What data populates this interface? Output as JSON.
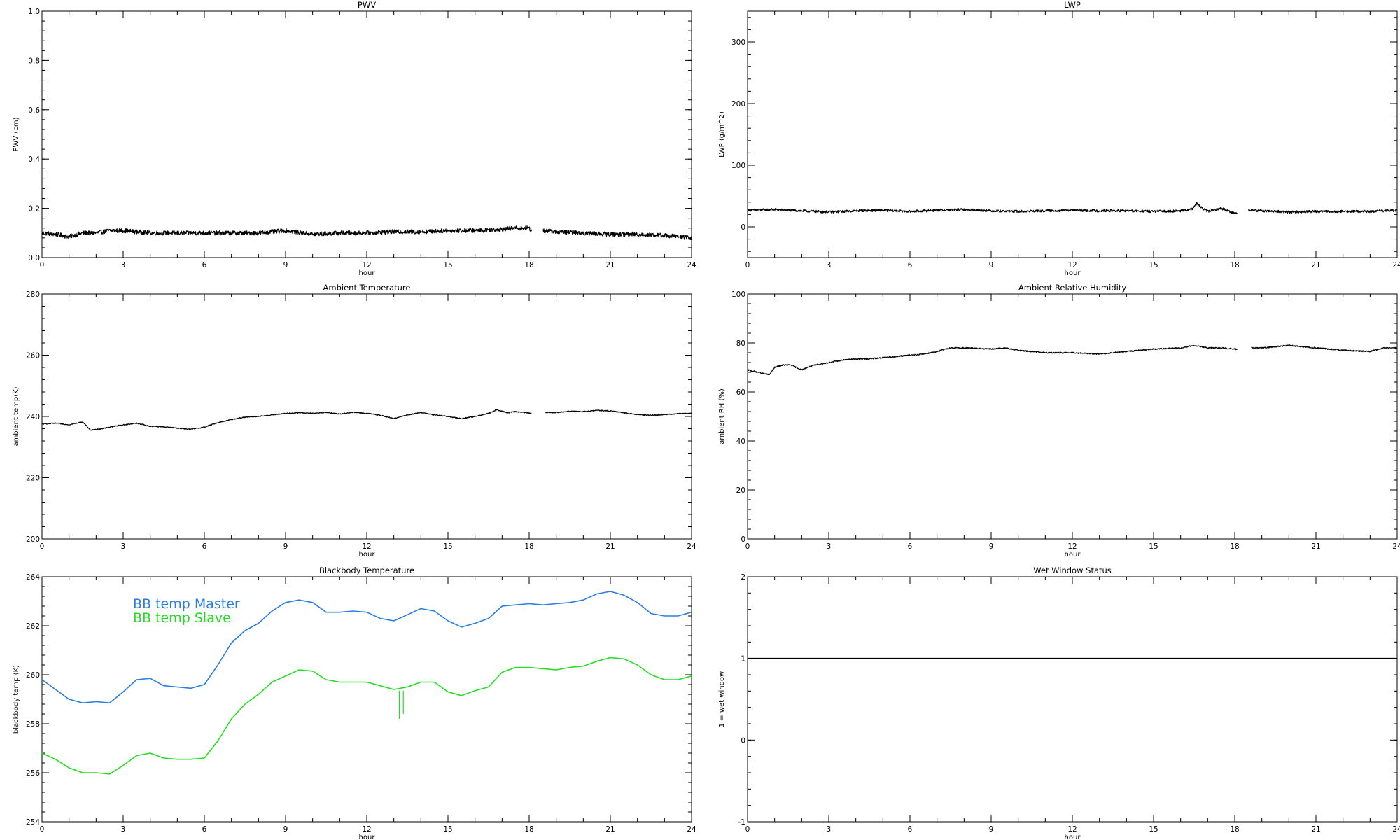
{
  "chart_data": [
    {
      "id": "pwv",
      "type": "line",
      "title": "PWV",
      "xlabel": "hour",
      "ylabel": "PWV (cm)",
      "xlim": [
        0,
        24
      ],
      "ylim": [
        0.0,
        1.0
      ],
      "xticks": [
        "0",
        "3",
        "6",
        "9",
        "12",
        "15",
        "18",
        "21",
        "24"
      ],
      "yticks": [
        "0.0",
        "0.2",
        "0.4",
        "0.6",
        "0.8",
        "1.0"
      ],
      "series": [
        {
          "color": "#000000",
          "noise": 0.009,
          "gaps": [
            [
              18.1,
              18.5
            ]
          ],
          "x": [
            0,
            0.5,
            1,
            1.5,
            2,
            2.5,
            3,
            3.5,
            4,
            5,
            6,
            7,
            8,
            9,
            10,
            11,
            12,
            13,
            14,
            15,
            16,
            17,
            17.5,
            18,
            18.1,
            18.5,
            19,
            20,
            21,
            22,
            23,
            24
          ],
          "y": [
            0.1,
            0.095,
            0.085,
            0.1,
            0.1,
            0.11,
            0.11,
            0.105,
            0.1,
            0.1,
            0.1,
            0.1,
            0.1,
            0.11,
            0.095,
            0.1,
            0.1,
            0.105,
            0.105,
            0.11,
            0.11,
            0.115,
            0.12,
            0.12,
            0.11,
            0.11,
            0.105,
            0.1,
            0.095,
            0.095,
            0.09,
            0.08
          ]
        }
      ]
    },
    {
      "id": "lwp",
      "type": "line",
      "title": "LWP",
      "xlabel": "hour",
      "ylabel": "LWP (g/m^2)",
      "xlim": [
        0,
        24
      ],
      "ylim": [
        -50,
        350
      ],
      "xticks": [
        "0",
        "3",
        "6",
        "9",
        "12",
        "15",
        "18",
        "21",
        "24"
      ],
      "yticks": [
        "0",
        "100",
        "200",
        "300"
      ],
      "series": [
        {
          "color": "#000000",
          "noise": 2.0,
          "gaps": [
            [
              18.1,
              18.5
            ]
          ],
          "x": [
            0,
            1,
            2,
            3,
            4,
            5,
            6,
            7,
            8,
            9,
            10,
            11,
            12,
            13,
            14,
            15,
            16,
            16.4,
            16.6,
            16.8,
            17,
            17.5,
            18,
            18.1,
            18.5,
            19,
            20,
            21,
            22,
            23,
            24
          ],
          "y": [
            27,
            28,
            26,
            24,
            26,
            27,
            25,
            27,
            28,
            26,
            25,
            26,
            27,
            26,
            26,
            25,
            26,
            28,
            38,
            30,
            25,
            30,
            22,
            22,
            27,
            26,
            24,
            25,
            25,
            25,
            27
          ]
        }
      ]
    },
    {
      "id": "ambient-temp",
      "type": "line",
      "title": "Ambient Temperature",
      "xlabel": "hour",
      "ylabel": "ambient temp(K)",
      "xlim": [
        0,
        24
      ],
      "ylim": [
        200,
        280
      ],
      "xticks": [
        "0",
        "3",
        "6",
        "9",
        "12",
        "15",
        "18",
        "21",
        "24"
      ],
      "yticks": [
        "200",
        "220",
        "240",
        "260",
        "280"
      ],
      "series": [
        {
          "color": "#000000",
          "noise": 0.15,
          "gaps": [
            [
              18.1,
              18.6
            ]
          ],
          "x": [
            0,
            0.5,
            1,
            1.5,
            1.8,
            2.2,
            2.8,
            3.5,
            4,
            4.5,
            5,
            5.5,
            6,
            6.5,
            7,
            7.5,
            8,
            8.5,
            9,
            9.5,
            10,
            10.5,
            11,
            11.5,
            12,
            12.5,
            13,
            13.5,
            14,
            14.5,
            15,
            15.5,
            16,
            16.5,
            16.8,
            17.2,
            17.5,
            18,
            18.1,
            18.6,
            19,
            19.5,
            20,
            20.5,
            21,
            21.5,
            22,
            22.5,
            23,
            23.5,
            24
          ],
          "y": [
            237.5,
            237.8,
            237.3,
            238.2,
            235.5,
            236.0,
            237.0,
            237.8,
            236.8,
            236.6,
            236.2,
            235.8,
            236.5,
            238.0,
            239.0,
            239.8,
            240.0,
            240.5,
            241.0,
            241.2,
            241.0,
            241.3,
            240.8,
            241.4,
            241.0,
            240.4,
            239.3,
            240.5,
            241.3,
            240.5,
            240.0,
            239.3,
            240.0,
            241.0,
            242.2,
            241.2,
            241.6,
            241.1,
            241.0,
            241.3,
            241.3,
            241.7,
            241.6,
            242.0,
            241.8,
            241.2,
            240.6,
            240.4,
            240.6,
            240.9,
            241.0
          ]
        }
      ]
    },
    {
      "id": "ambient-rh",
      "type": "line",
      "title": "Ambient Relative Humidity",
      "xlabel": "hour",
      "ylabel": "ambient RH (%)",
      "xlim": [
        0,
        24
      ],
      "ylim": [
        0,
        100
      ],
      "xticks": [
        "0",
        "3",
        "6",
        "9",
        "12",
        "15",
        "18",
        "21",
        "24"
      ],
      "yticks": [
        "0",
        "20",
        "40",
        "60",
        "80",
        "100"
      ],
      "series": [
        {
          "color": "#000000",
          "noise": 0.25,
          "gaps": [
            [
              18.1,
              18.6
            ]
          ],
          "x": [
            0,
            0.4,
            0.8,
            1.0,
            1.3,
            1.6,
            2.0,
            2.2,
            2.5,
            3,
            3.5,
            4,
            4.5,
            5,
            5.5,
            6,
            6.5,
            7,
            7.5,
            8,
            9,
            9.5,
            10,
            11,
            12,
            13,
            14,
            15,
            16,
            16.5,
            17,
            17.5,
            18,
            18.1,
            18.6,
            19,
            19.5,
            20,
            20.5,
            21,
            22,
            23,
            23.5,
            24
          ],
          "y": [
            69,
            68,
            67,
            70,
            71,
            71,
            69,
            70,
            71,
            72,
            73,
            73.5,
            73.5,
            74,
            74.5,
            75,
            75.5,
            76.5,
            78,
            78,
            77.5,
            78,
            77,
            76,
            76,
            75.5,
            76.5,
            77.5,
            78,
            79,
            78,
            78,
            77.5,
            77.5,
            78,
            78,
            78.5,
            79,
            78.5,
            78,
            77,
            76.5,
            78,
            78
          ]
        }
      ]
    },
    {
      "id": "bb-temp",
      "type": "line",
      "title": "Blackbody Temperature",
      "xlabel": "hour",
      "ylabel": "blackbody temp (K)",
      "xlim": [
        0,
        24
      ],
      "ylim": [
        254,
        264
      ],
      "xticks": [
        "0",
        "3",
        "6",
        "9",
        "12",
        "15",
        "18",
        "21",
        "24"
      ],
      "yticks": [
        "254",
        "256",
        "258",
        "260",
        "262",
        "264"
      ],
      "legend": [
        "BB temp Master",
        "BB temp Slave"
      ],
      "legend_position": "top-left",
      "series": [
        {
          "name": "BB temp Master",
          "color": "#2b7de0",
          "noise": 0,
          "x": [
            0,
            0.5,
            1,
            1.5,
            2,
            2.5,
            3,
            3.5,
            4,
            4.5,
            5,
            5.5,
            6,
            6.5,
            7,
            7.5,
            8,
            8.5,
            9,
            9.5,
            10,
            10.5,
            11,
            11.5,
            12,
            12.5,
            13,
            13.5,
            14,
            14.5,
            15,
            15.5,
            16,
            16.5,
            17,
            17.5,
            18,
            18.5,
            19,
            19.5,
            20,
            20.5,
            21,
            21.5,
            22,
            22.5,
            23,
            23.5,
            24
          ],
          "y": [
            259.8,
            259.4,
            259.0,
            258.85,
            258.9,
            258.85,
            259.3,
            259.8,
            259.85,
            259.55,
            259.5,
            259.45,
            259.6,
            260.4,
            261.3,
            261.8,
            262.1,
            262.6,
            262.95,
            263.05,
            262.95,
            262.55,
            262.55,
            262.6,
            262.55,
            262.3,
            262.2,
            262.45,
            262.7,
            262.6,
            262.2,
            261.95,
            262.1,
            262.3,
            262.8,
            262.85,
            262.9,
            262.85,
            262.9,
            262.95,
            263.05,
            263.3,
            263.4,
            263.25,
            262.95,
            262.5,
            262.4,
            262.4,
            262.55
          ]
        },
        {
          "name": "BB temp Slave",
          "color": "#22dd22",
          "noise": 0,
          "x": [
            0,
            0.5,
            1,
            1.5,
            2,
            2.5,
            3,
            3.5,
            4,
            4.5,
            5,
            5.5,
            6,
            6.5,
            7,
            7.5,
            8,
            8.5,
            9,
            9.5,
            10,
            10.5,
            11,
            11.5,
            12,
            12.5,
            13,
            13.5,
            14,
            14.5,
            15,
            15.5,
            16,
            16.5,
            17,
            17.5,
            18,
            18.5,
            19,
            19.5,
            20,
            20.5,
            21,
            21.5,
            22,
            22.5,
            23,
            23.5,
            24
          ],
          "y": [
            256.8,
            256.55,
            256.2,
            256.0,
            256.0,
            255.95,
            256.3,
            256.7,
            256.8,
            256.6,
            256.55,
            256.55,
            256.6,
            257.3,
            258.2,
            258.8,
            259.2,
            259.7,
            259.95,
            260.2,
            260.15,
            259.8,
            259.7,
            259.7,
            259.7,
            259.55,
            259.4,
            259.5,
            259.7,
            259.7,
            259.3,
            259.15,
            259.35,
            259.5,
            260.1,
            260.3,
            260.3,
            260.25,
            260.2,
            260.3,
            260.35,
            260.55,
            260.7,
            260.65,
            260.4,
            260.0,
            259.8,
            259.8,
            259.95
          ]
        }
      ],
      "spikes": [
        {
          "x": 13.2,
          "y_from": 259.35,
          "y_to": 258.2
        },
        {
          "x": 13.35,
          "y_from": 259.35,
          "y_to": 258.4
        }
      ]
    },
    {
      "id": "wet-window",
      "type": "line",
      "title": "Wet Window Status",
      "xlabel": "hour",
      "ylabel": "1 = wet window",
      "xlim": [
        0,
        24
      ],
      "ylim": [
        -1,
        2
      ],
      "xticks": [
        "0",
        "3",
        "6",
        "9",
        "12",
        "15",
        "18",
        "21",
        "24"
      ],
      "yticks": [
        "-1",
        "0",
        "1",
        "2"
      ],
      "series": [
        {
          "color": "#000000",
          "noise": 0,
          "x": [
            0,
            24
          ],
          "y": [
            1,
            1
          ]
        }
      ]
    }
  ]
}
